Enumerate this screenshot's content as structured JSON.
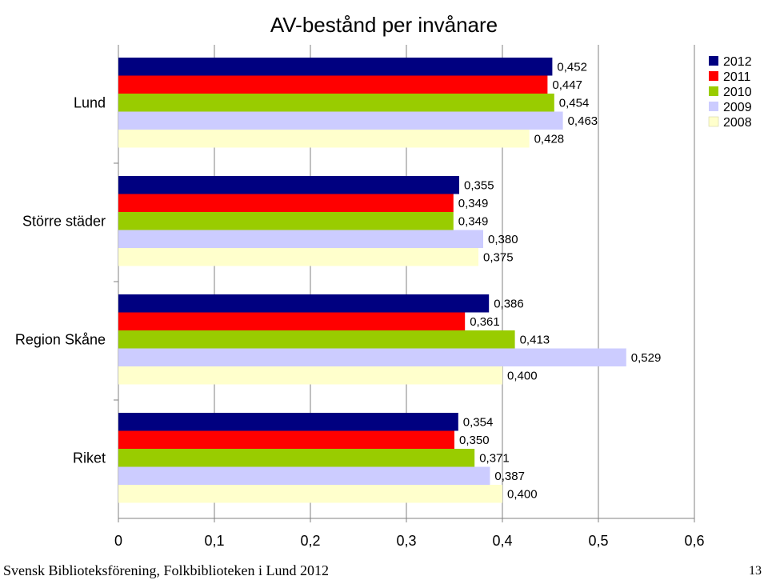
{
  "chart_data": {
    "type": "bar",
    "orientation": "horizontal",
    "title": "AV-bestånd per invånare",
    "categories": [
      "Lund",
      "Större städer",
      "Region Skåne",
      "Riket"
    ],
    "series": [
      {
        "name": "2012",
        "color": "#000080",
        "values": [
          0.452,
          0.355,
          0.386,
          0.354
        ],
        "labels": [
          "0,452",
          "0,355",
          "0,386",
          "0,354"
        ]
      },
      {
        "name": "2011",
        "color": "#ff0000",
        "values": [
          0.447,
          0.349,
          0.361,
          0.35
        ],
        "labels": [
          "0,447",
          "0,349",
          "0,361",
          "0,350"
        ]
      },
      {
        "name": "2010",
        "color": "#99cc00",
        "values": [
          0.454,
          0.349,
          0.413,
          0.371
        ],
        "labels": [
          "0,454",
          "0,349",
          "0,413",
          "0,371"
        ]
      },
      {
        "name": "2009",
        "color": "#ccccff",
        "values": [
          0.463,
          0.38,
          0.529,
          0.387
        ],
        "labels": [
          "0,463",
          "0,380",
          "0,529",
          "0,387"
        ]
      },
      {
        "name": "2008",
        "color": "#ffffcc",
        "values": [
          0.428,
          0.375,
          0.4,
          0.4
        ],
        "labels": [
          "0,428",
          "0,375",
          "0,400",
          "0,400"
        ]
      }
    ],
    "xlim": [
      0,
      0.6
    ],
    "xticks": [
      0,
      0.1,
      0.2,
      0.3,
      0.4,
      0.5,
      0.6
    ],
    "xtick_labels": [
      "0",
      "0,1",
      "0,2",
      "0,3",
      "0,4",
      "0,5",
      "0,6"
    ],
    "grid": true,
    "legend_position": "top-right"
  },
  "footer": {
    "text": "Svensk Biblioteksförening, Folkbiblioteken i Lund 2012",
    "page_number": "13"
  }
}
